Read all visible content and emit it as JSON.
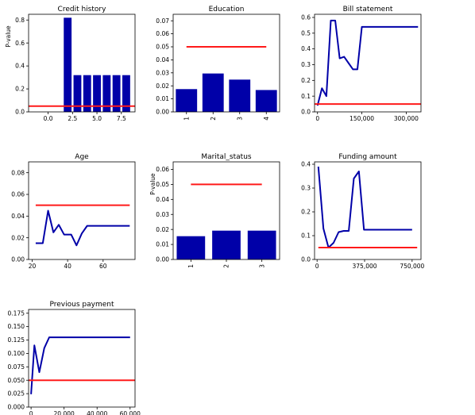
{
  "chart_data": [
    {
      "id": "credit-history",
      "type": "bar+line",
      "title": "Credit history",
      "ylabel": "P-value",
      "xlim": [
        -2.0,
        8.9
      ],
      "ylim": [
        0,
        0.85
      ],
      "xticks": [
        0,
        2.5,
        5,
        7.5
      ],
      "xtick_labels": [
        "0.0",
        "2.5",
        "5.0",
        "7.5"
      ],
      "xtick_rotate": 0,
      "yticks": [
        0,
        0.2,
        0.4,
        0.6,
        0.8
      ],
      "ytick_labels": [
        "0.0",
        "0.2",
        "0.4",
        "0.6",
        "0.8"
      ],
      "bars": {
        "x": [
          2,
          3,
          4,
          5,
          6,
          7,
          8
        ],
        "values": [
          0.82,
          0.32,
          0.32,
          0.32,
          0.32,
          0.32,
          0.32
        ],
        "width": 0.8
      },
      "threshold": {
        "x": [
          -2.0,
          8.9
        ],
        "y": 0.05
      }
    },
    {
      "id": "education",
      "type": "bar+line",
      "title": "Education",
      "ylabel": "",
      "xlim": [
        0.5,
        4.5
      ],
      "ylim": [
        0,
        0.075
      ],
      "xticks": [
        1,
        2,
        3,
        4
      ],
      "xtick_labels": [
        "1",
        "2",
        "3",
        "4"
      ],
      "xtick_rotate": -90,
      "yticks": [
        0,
        0.01,
        0.02,
        0.03,
        0.04,
        0.05,
        0.06,
        0.07
      ],
      "ytick_labels": [
        "0.00",
        "0.01",
        "0.02",
        "0.03",
        "0.04",
        "0.05",
        "0.06",
        "0.07"
      ],
      "bars": {
        "x": [
          1,
          2,
          3,
          4
        ],
        "values": [
          0.0175,
          0.0295,
          0.0248,
          0.0168
        ],
        "width": 0.8
      },
      "threshold": {
        "x": [
          1,
          4
        ],
        "y": 0.05
      }
    },
    {
      "id": "bill-statement",
      "type": "line",
      "title": "Bill statement",
      "ylabel": "",
      "xlim": [
        -10000,
        350000
      ],
      "ylim": [
        0,
        0.62
      ],
      "xticks": [
        0,
        150000,
        300000
      ],
      "xtick_labels": [
        "0",
        "150,000",
        "300,000"
      ],
      "xtick_rotate": 0,
      "yticks": [
        0,
        0.1,
        0.2,
        0.3,
        0.4,
        0.5,
        0.6
      ],
      "ytick_labels": [
        "0.0",
        "0.1",
        "0.2",
        "0.3",
        "0.4",
        "0.5",
        "0.6"
      ],
      "line": {
        "x": [
          0,
          15000,
          30000,
          45000,
          60000,
          75000,
          90000,
          105000,
          120000,
          135000,
          150000,
          165000,
          180000,
          200000,
          250000,
          300000,
          340000
        ],
        "y": [
          0.04,
          0.15,
          0.1,
          0.58,
          0.58,
          0.34,
          0.35,
          0.31,
          0.27,
          0.27,
          0.54,
          0.54,
          0.54,
          0.54,
          0.54,
          0.54,
          0.54
        ]
      },
      "threshold": {
        "x": [
          -10000,
          350000
        ],
        "y": 0.05
      }
    },
    {
      "id": "age",
      "type": "line",
      "title": "Age",
      "ylabel": "",
      "xlim": [
        18,
        78
      ],
      "ylim": [
        0,
        0.09
      ],
      "xticks": [
        20,
        40,
        60
      ],
      "xtick_labels": [
        "20",
        "40",
        "60"
      ],
      "xtick_rotate": 0,
      "yticks": [
        0,
        0.02,
        0.04,
        0.06,
        0.08
      ],
      "ytick_labels": [
        "0.00",
        "0.02",
        "0.04",
        "0.06",
        "0.08"
      ],
      "line": {
        "x": [
          22,
          26,
          29,
          32,
          35,
          38,
          42,
          45,
          48,
          51,
          55,
          60,
          65,
          70,
          75
        ],
        "y": [
          0.015,
          0.015,
          0.045,
          0.025,
          0.032,
          0.023,
          0.023,
          0.013,
          0.024,
          0.031,
          0.031,
          0.031,
          0.031,
          0.031,
          0.031
        ]
      },
      "threshold": {
        "x": [
          22,
          75
        ],
        "y": 0.05
      }
    },
    {
      "id": "marital-status",
      "type": "bar+line",
      "title": "Marital_status",
      "ylabel": "P-value",
      "xlim": [
        0.5,
        3.5
      ],
      "ylim": [
        0,
        0.065
      ],
      "xticks": [
        1,
        2,
        3
      ],
      "xtick_labels": [
        "1",
        "2",
        "3"
      ],
      "xtick_rotate": -90,
      "yticks": [
        0,
        0.01,
        0.02,
        0.03,
        0.04,
        0.05,
        0.06
      ],
      "ytick_labels": [
        "0.00",
        "0.01",
        "0.02",
        "0.03",
        "0.04",
        "0.05",
        "0.06"
      ],
      "bars": {
        "x": [
          1,
          2,
          3
        ],
        "values": [
          0.0155,
          0.0192,
          0.0192
        ],
        "width": 0.8
      },
      "threshold": {
        "x": [
          1,
          3
        ],
        "y": 0.05
      }
    },
    {
      "id": "funding-amount",
      "type": "line",
      "title": "Funding amount",
      "ylabel": "",
      "xlim": [
        -20000,
        820000
      ],
      "ylim": [
        0,
        0.41
      ],
      "xticks": [
        0,
        375000,
        750000
      ],
      "xtick_labels": [
        "0",
        "375,000",
        "750,000"
      ],
      "xtick_rotate": 0,
      "yticks": [
        0,
        0.1,
        0.2,
        0.3,
        0.4
      ],
      "ytick_labels": [
        "0.0",
        "0.1",
        "0.2",
        "0.3",
        "0.4"
      ],
      "line": {
        "x": [
          10000,
          50000,
          90000,
          130000,
          170000,
          210000,
          250000,
          290000,
          330000,
          370000,
          450000,
          550000,
          650000,
          750000
        ],
        "y": [
          0.39,
          0.13,
          0.05,
          0.07,
          0.115,
          0.12,
          0.12,
          0.34,
          0.37,
          0.125,
          0.125,
          0.125,
          0.125,
          0.125
        ]
      },
      "threshold": {
        "x": [
          10000,
          790000
        ],
        "y": 0.05
      }
    },
    {
      "id": "previous-payment",
      "type": "line",
      "title": "Previous payment",
      "ylabel": "",
      "xlim": [
        -1500,
        63000
      ],
      "ylim": [
        0,
        0.182
      ],
      "xticks": [
        0,
        20000,
        40000,
        60000
      ],
      "xtick_labels": [
        "0",
        "20,000",
        "40,000",
        "60,000"
      ],
      "xtick_rotate": 0,
      "yticks": [
        0,
        0.025,
        0.05,
        0.075,
        0.1,
        0.125,
        0.15,
        0.175
      ],
      "ytick_labels": [
        "0.000",
        "0.025",
        "0.050",
        "0.075",
        "0.100",
        "0.125",
        "0.150",
        "0.175"
      ],
      "line": {
        "x": [
          0,
          2000,
          5000,
          8000,
          11000,
          15000,
          20000,
          30000,
          40000,
          50000,
          60000
        ],
        "y": [
          0.024,
          0.115,
          0.065,
          0.11,
          0.13,
          0.13,
          0.13,
          0.13,
          0.13,
          0.13,
          0.13
        ]
      },
      "threshold": {
        "x": [
          -1500,
          63000
        ],
        "y": 0.05
      }
    }
  ],
  "colors": {
    "series": "#0000a8",
    "threshold": "#ff1a1a",
    "axis": "#000000"
  }
}
